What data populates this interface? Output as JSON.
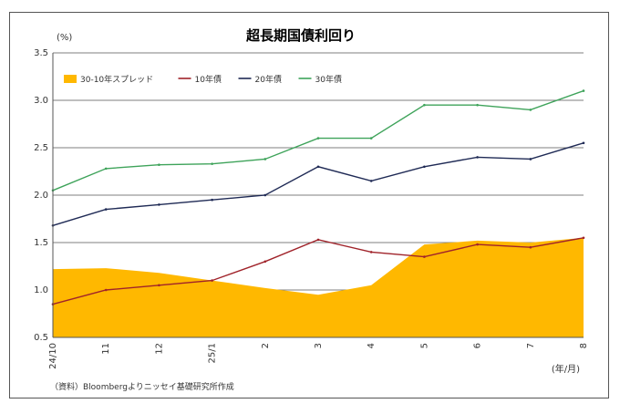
{
  "chart_data": {
    "type": "line",
    "title": "超長期国債利回り",
    "unit_label": "(%)",
    "x_unit_label": "(年/月)",
    "source_note": "（資料）Bloombergよりニッセイ基礎研究所作成",
    "ylim": [
      0.5,
      3.5
    ],
    "yticks": [
      "0.5",
      "1.0",
      "1.5",
      "2.0",
      "2.5",
      "3.0",
      "3.5"
    ],
    "xticks": [
      "24/10",
      "11",
      "12",
      "25/1",
      "2",
      "3",
      "4",
      "5",
      "6",
      "7",
      "8"
    ],
    "x": [
      "24/10",
      "24/11",
      "24/12",
      "25/1",
      "25/2",
      "25/3",
      "25/4",
      "25/5",
      "25/6",
      "25/7",
      "25/8"
    ],
    "grid": true,
    "legend_position": "top-left",
    "colors": {
      "spread": "#FFB800",
      "y10": "#A0232A",
      "y20": "#1F2A55",
      "y30": "#3EA35A"
    },
    "series": [
      {
        "name": "30-10年スプレッド",
        "kind": "area",
        "values": [
          1.22,
          1.23,
          1.18,
          1.1,
          1.02,
          0.95,
          1.05,
          1.48,
          1.52,
          1.5,
          1.55
        ]
      },
      {
        "name": "10年債",
        "kind": "line",
        "values": [
          0.85,
          1.0,
          1.05,
          1.1,
          1.3,
          1.53,
          1.4,
          1.35,
          1.48,
          1.45,
          1.55
        ]
      },
      {
        "name": "20年債",
        "kind": "line",
        "values": [
          1.68,
          1.85,
          1.9,
          1.95,
          2.0,
          2.3,
          2.15,
          2.3,
          2.4,
          2.38,
          2.55
        ]
      },
      {
        "name": "30年債",
        "kind": "line",
        "values": [
          2.05,
          2.28,
          2.32,
          2.33,
          2.38,
          2.6,
          2.6,
          2.95,
          2.95,
          2.9,
          3.1
        ]
      }
    ]
  }
}
